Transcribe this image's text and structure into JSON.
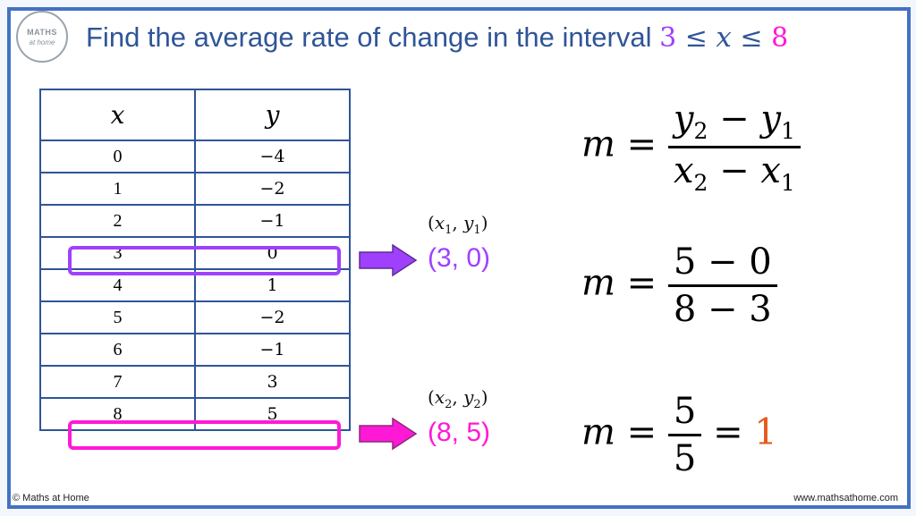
{
  "logo": {
    "line1": "MATHS",
    "line2": "at home"
  },
  "title": {
    "text": "Find the average rate of change in the interval ",
    "lower": "3",
    "leq1": " ≤ ",
    "var": "x",
    "leq2": " ≤ ",
    "upper": "8"
  },
  "table": {
    "headers": [
      "x",
      "y"
    ],
    "rows": [
      {
        "x": "0",
        "y": "−4"
      },
      {
        "x": "1",
        "y": "−2"
      },
      {
        "x": "2",
        "y": "−1"
      },
      {
        "x": "3",
        "y": "0"
      },
      {
        "x": "4",
        "y": "1"
      },
      {
        "x": "5",
        "y": "−2"
      },
      {
        "x": "6",
        "y": "−1"
      },
      {
        "x": "7",
        "y": "3"
      },
      {
        "x": "8",
        "y": "5"
      }
    ]
  },
  "points": [
    {
      "label_var_x": "x",
      "label_sub_x": "1",
      "label_var_y": "y",
      "label_sub_y": "1",
      "value": "(3, 0)",
      "color": "#a040ff"
    },
    {
      "label_var_x": "x",
      "label_sub_x": "2",
      "label_var_y": "y",
      "label_sub_y": "2",
      "value": "(8, 5)",
      "color": "#ff19d6"
    }
  ],
  "equations": {
    "lhs": "m",
    "equals": "=",
    "formula": {
      "num_a": "y",
      "num_a_sub": "2",
      "minus": "−",
      "num_b": "y",
      "num_b_sub": "1",
      "den_a": "x",
      "den_a_sub": "2",
      "den_b": "x",
      "den_b_sub": "1"
    },
    "substituted": {
      "num": "5 − 0",
      "den": "8 − 3"
    },
    "simplified": {
      "num": "5",
      "den": "5",
      "result": "1"
    }
  },
  "footer": {
    "left": "© Maths at Home",
    "right": "www.mathsathome.com"
  }
}
